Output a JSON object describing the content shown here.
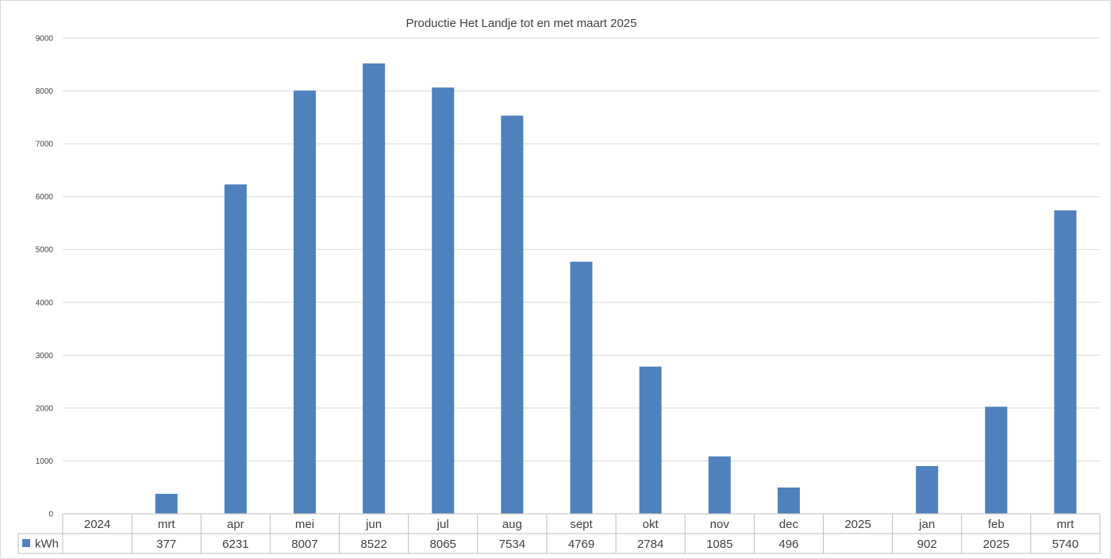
{
  "chart_data": {
    "type": "bar",
    "title": "Productie Het Landje tot en met maart 2025",
    "categories": [
      "2024",
      "mrt",
      "apr",
      "mei",
      "jun",
      "jul",
      "aug",
      "sept",
      "okt",
      "nov",
      "dec",
      "2025",
      "jan",
      "feb",
      "mrt"
    ],
    "series": [
      {
        "name": "kWh",
        "color": "#4f81bd",
        "values": [
          null,
          377,
          6231,
          8007,
          8522,
          8065,
          7534,
          4769,
          2784,
          1085,
          496,
          null,
          902,
          2025,
          5740
        ]
      }
    ],
    "ylim": [
      0,
      9000
    ],
    "yticks": [
      0,
      1000,
      2000,
      3000,
      4000,
      5000,
      6000,
      7000,
      8000,
      9000
    ],
    "grid": true,
    "legend": "data-table",
    "data_table": true,
    "xlabel": "",
    "ylabel": ""
  }
}
